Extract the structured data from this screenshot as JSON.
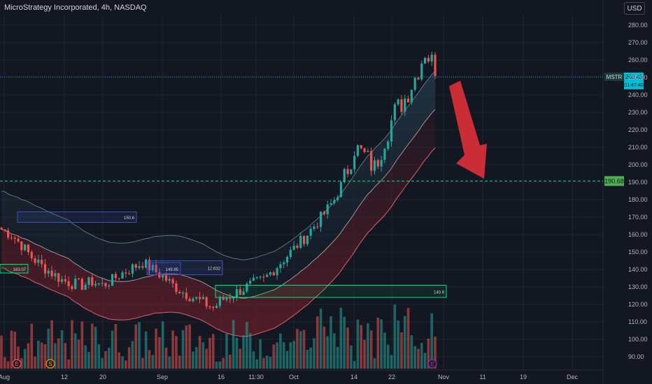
{
  "header": {
    "title": "MicroStrategy Incorporated, 4h, NASDAQ",
    "currency": "USD"
  },
  "price_tag": {
    "symbol": "MSTR",
    "price": "250.43",
    "countdown": "01:47:40"
  },
  "colors": {
    "background": "#131722",
    "up": "#26a69a",
    "down": "#ef5350",
    "accent_cyan": "#00bcd4",
    "support_green": "#00e676",
    "arrow_red": "#e0303a"
  },
  "chart_data": {
    "type": "candlestick",
    "ylim": [
      84,
      284
    ],
    "y_ticks": [
      90,
      100,
      110,
      120,
      130,
      140,
      150,
      160,
      170,
      180,
      190,
      200,
      210,
      220,
      230,
      240,
      250,
      260,
      270,
      280
    ],
    "x_ticks": [
      "Aug",
      "12",
      "20",
      "Sep",
      "16",
      "11:30",
      "Oct",
      "14",
      "22",
      "Nov",
      "11",
      "19",
      "Dec"
    ],
    "close_path": [
      163,
      160,
      154,
      147,
      142,
      138,
      134,
      132,
      131,
      133,
      131,
      134,
      138,
      141,
      144,
      140,
      136,
      131,
      127,
      124,
      121,
      118,
      123,
      126,
      129,
      132,
      134,
      140,
      146,
      152,
      158,
      165,
      172,
      180,
      192,
      210,
      205,
      198,
      215,
      230,
      238,
      250,
      265,
      256
    ],
    "horizontal_line": {
      "value": 190.68,
      "label": "190.68"
    },
    "boxes": [
      {
        "label": "150.6",
        "from_value": 167,
        "to_value": 173
      },
      {
        "label": "163.07",
        "from_value": 138,
        "to_value": 143
      },
      {
        "label": "12.632",
        "from_value": 137,
        "to_value": 145
      },
      {
        "label": "149.95",
        "from_value": 137,
        "to_value": 144
      },
      {
        "label": "140.9",
        "from_value": 124,
        "to_value": 131
      }
    ],
    "event_markers": [
      "E",
      "S",
      "E"
    ],
    "forecast_arrow": {
      "from_value": 245,
      "to_value": 192
    }
  }
}
